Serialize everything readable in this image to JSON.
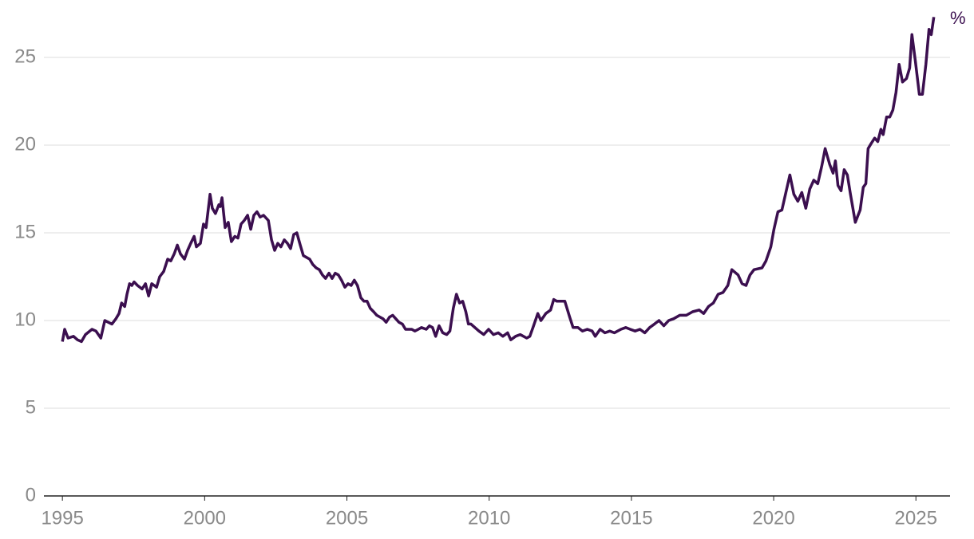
{
  "chart_data": {
    "type": "line",
    "y_unit": "%",
    "xlim": [
      1994.35,
      2026.2
    ],
    "xticks": [
      1995,
      2000,
      2005,
      2010,
      2015,
      2020,
      2025
    ],
    "ylim": [
      0,
      28
    ],
    "yticks": [
      0,
      5,
      10,
      15,
      20,
      25
    ],
    "grid": true,
    "series": [
      {
        "color": "#3b0f4f",
        "x": [
          1995.0,
          1995.08,
          1995.2,
          1995.39,
          1995.53,
          1995.67,
          1995.81,
          1996.04,
          1996.18,
          1996.35,
          1996.49,
          1996.74,
          1996.88,
          1996.99,
          1997.08,
          1997.19,
          1997.27,
          1997.36,
          1997.44,
          1997.52,
          1997.64,
          1997.8,
          1997.92,
          1998.03,
          1998.14,
          1998.31,
          1998.42,
          1998.56,
          1998.7,
          1998.81,
          1998.93,
          1999.04,
          1999.15,
          1999.29,
          1999.4,
          1999.51,
          1999.63,
          1999.71,
          1999.85,
          1999.96,
          2000.05,
          2000.19,
          2000.27,
          2000.38,
          2000.5,
          2000.55,
          2000.61,
          2000.72,
          2000.83,
          2000.94,
          2001.06,
          2001.17,
          2001.28,
          2001.39,
          2001.51,
          2001.62,
          2001.73,
          2001.84,
          2001.95,
          2002.07,
          2002.24,
          2002.35,
          2002.46,
          2002.57,
          2002.68,
          2002.8,
          2002.91,
          2003.02,
          2003.13,
          2003.24,
          2003.36,
          2003.47,
          2003.58,
          2003.69,
          2003.8,
          2003.92,
          2004.03,
          2004.14,
          2004.25,
          2004.37,
          2004.48,
          2004.59,
          2004.7,
          2004.81,
          2004.93,
          2005.04,
          2005.15,
          2005.26,
          2005.37,
          2005.49,
          2005.6,
          2005.71,
          2005.82,
          2005.94,
          2006.05,
          2006.16,
          2006.27,
          2006.38,
          2006.5,
          2006.61,
          2006.72,
          2006.83,
          2006.95,
          2007.06,
          2007.28,
          2007.39,
          2007.51,
          2007.62,
          2007.79,
          2007.9,
          2008.01,
          2008.12,
          2008.24,
          2008.37,
          2008.51,
          2008.62,
          2008.74,
          2008.85,
          2008.96,
          2009.07,
          2009.18,
          2009.27,
          2009.36,
          2009.64,
          2009.81,
          2009.98,
          2010.15,
          2010.32,
          2010.48,
          2010.65,
          2010.76,
          2010.93,
          2011.09,
          2011.32,
          2011.43,
          2011.54,
          2011.71,
          2011.82,
          2011.99,
          2012.16,
          2012.27,
          2012.38,
          2012.55,
          2012.66,
          2012.83,
          2012.95,
          2013.12,
          2013.28,
          2013.45,
          2013.62,
          2013.73,
          2013.9,
          2014.07,
          2014.24,
          2014.4,
          2014.63,
          2014.8,
          2014.96,
          2015.13,
          2015.3,
          2015.47,
          2015.64,
          2015.81,
          2015.97,
          2016.14,
          2016.31,
          2016.48,
          2016.7,
          2016.93,
          2017.15,
          2017.38,
          2017.54,
          2017.71,
          2017.88,
          2018.05,
          2018.22,
          2018.39,
          2018.53,
          2018.75,
          2018.89,
          2019.03,
          2019.17,
          2019.31,
          2019.59,
          2019.73,
          2019.9,
          2020.01,
          2020.15,
          2020.29,
          2020.43,
          2020.57,
          2020.71,
          2020.85,
          2020.99,
          2021.13,
          2021.27,
          2021.41,
          2021.55,
          2021.69,
          2021.81,
          2021.97,
          2022.09,
          2022.17,
          2022.26,
          2022.37,
          2022.48,
          2022.59,
          2022.7,
          2022.87,
          2023.04,
          2023.15,
          2023.24,
          2023.32,
          2023.43,
          2023.55,
          2023.66,
          2023.77,
          2023.85,
          2023.97,
          2024.08,
          2024.19,
          2024.3,
          2024.41,
          2024.53,
          2024.67,
          2024.78,
          2024.86,
          2024.98,
          2025.12,
          2025.23,
          2025.35,
          2025.46,
          2025.54,
          2025.63
        ],
        "values": [
          8.8,
          9.5,
          9.0,
          9.1,
          8.9,
          8.8,
          9.2,
          9.5,
          9.4,
          9.0,
          10.0,
          9.8,
          10.1,
          10.4,
          11.0,
          10.8,
          11.5,
          12.1,
          12.0,
          12.2,
          12.0,
          11.8,
          12.1,
          11.4,
          12.1,
          11.9,
          12.5,
          12.8,
          13.5,
          13.4,
          13.8,
          14.3,
          13.8,
          13.5,
          14.0,
          14.4,
          14.8,
          14.2,
          14.4,
          15.5,
          15.3,
          17.2,
          16.4,
          16.1,
          16.6,
          16.5,
          17.0,
          15.3,
          15.6,
          14.5,
          14.8,
          14.7,
          15.5,
          15.7,
          16.0,
          15.2,
          16.0,
          16.2,
          15.9,
          16.0,
          15.7,
          14.6,
          14.0,
          14.4,
          14.2,
          14.6,
          14.4,
          14.1,
          14.9,
          15.0,
          14.3,
          13.7,
          13.6,
          13.5,
          13.2,
          13.0,
          12.9,
          12.6,
          12.4,
          12.7,
          12.4,
          12.7,
          12.6,
          12.3,
          11.9,
          12.1,
          12.0,
          12.3,
          12.0,
          11.3,
          11.1,
          11.1,
          10.7,
          10.5,
          10.3,
          10.2,
          10.1,
          9.9,
          10.2,
          10.3,
          10.1,
          9.9,
          9.8,
          9.5,
          9.5,
          9.4,
          9.5,
          9.6,
          9.5,
          9.7,
          9.6,
          9.1,
          9.7,
          9.3,
          9.2,
          9.4,
          10.7,
          11.5,
          11.0,
          11.1,
          10.5,
          9.8,
          9.8,
          9.4,
          9.2,
          9.5,
          9.2,
          9.3,
          9.1,
          9.3,
          8.9,
          9.1,
          9.2,
          9.0,
          9.1,
          9.6,
          10.4,
          10.0,
          10.4,
          10.6,
          11.2,
          11.1,
          11.1,
          11.1,
          10.2,
          9.6,
          9.6,
          9.4,
          9.5,
          9.4,
          9.1,
          9.5,
          9.3,
          9.4,
          9.3,
          9.5,
          9.6,
          9.5,
          9.4,
          9.5,
          9.3,
          9.6,
          9.8,
          10.0,
          9.7,
          10.0,
          10.1,
          10.3,
          10.3,
          10.5,
          10.6,
          10.4,
          10.8,
          11.0,
          11.5,
          11.6,
          12.0,
          12.9,
          12.6,
          12.1,
          12.0,
          12.6,
          12.9,
          13.0,
          13.4,
          14.2,
          15.2,
          16.2,
          16.3,
          17.3,
          18.3,
          17.2,
          16.8,
          17.3,
          16.4,
          17.5,
          18.0,
          17.8,
          18.8,
          19.8,
          18.9,
          18.4,
          19.1,
          17.7,
          17.4,
          18.6,
          18.3,
          17.2,
          15.6,
          16.3,
          17.6,
          17.8,
          19.8,
          20.1,
          20.4,
          20.2,
          20.9,
          20.6,
          21.6,
          21.6,
          22.0,
          23.0,
          24.6,
          23.6,
          23.8,
          24.4,
          26.3,
          24.8,
          22.9,
          22.9,
          24.6,
          26.6,
          26.3,
          27.3
        ]
      }
    ]
  }
}
